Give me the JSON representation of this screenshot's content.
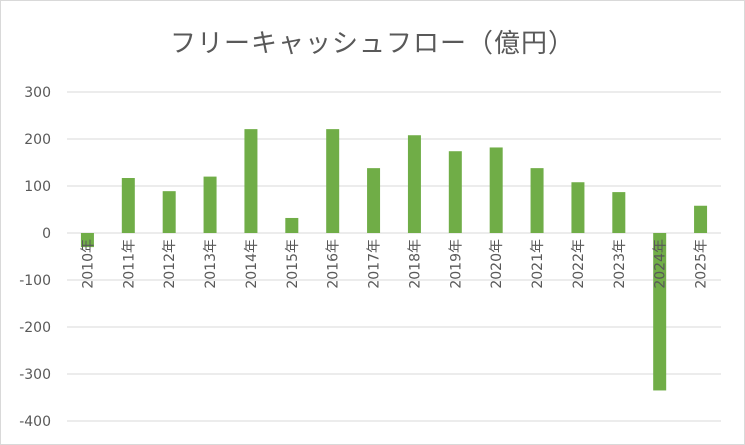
{
  "chart_data": {
    "type": "bar",
    "title": "フリーキャッシュフロー（億円）",
    "xlabel": "",
    "ylabel": "",
    "categories": [
      "2010年",
      "2011年",
      "2012年",
      "2013年",
      "2014年",
      "2015年",
      "2016年",
      "2017年",
      "2018年",
      "2019年",
      "2020年",
      "2021年",
      "2022年",
      "2023年",
      "2024年",
      "2025年"
    ],
    "series": [
      {
        "values": [
          -30,
          117,
          89,
          120,
          221,
          32,
          221,
          138,
          208,
          174,
          182,
          138,
          108,
          87,
          -335,
          58
        ]
      }
    ],
    "ylim": [
      -400,
      300
    ],
    "yticks": [
      300,
      200,
      100,
      0,
      -100,
      -200,
      -300,
      -400
    ],
    "grid": true,
    "legend": "none",
    "colors": {
      "bar": "#70ad47",
      "grid": "#d9d9d9",
      "text": "#595959"
    }
  }
}
